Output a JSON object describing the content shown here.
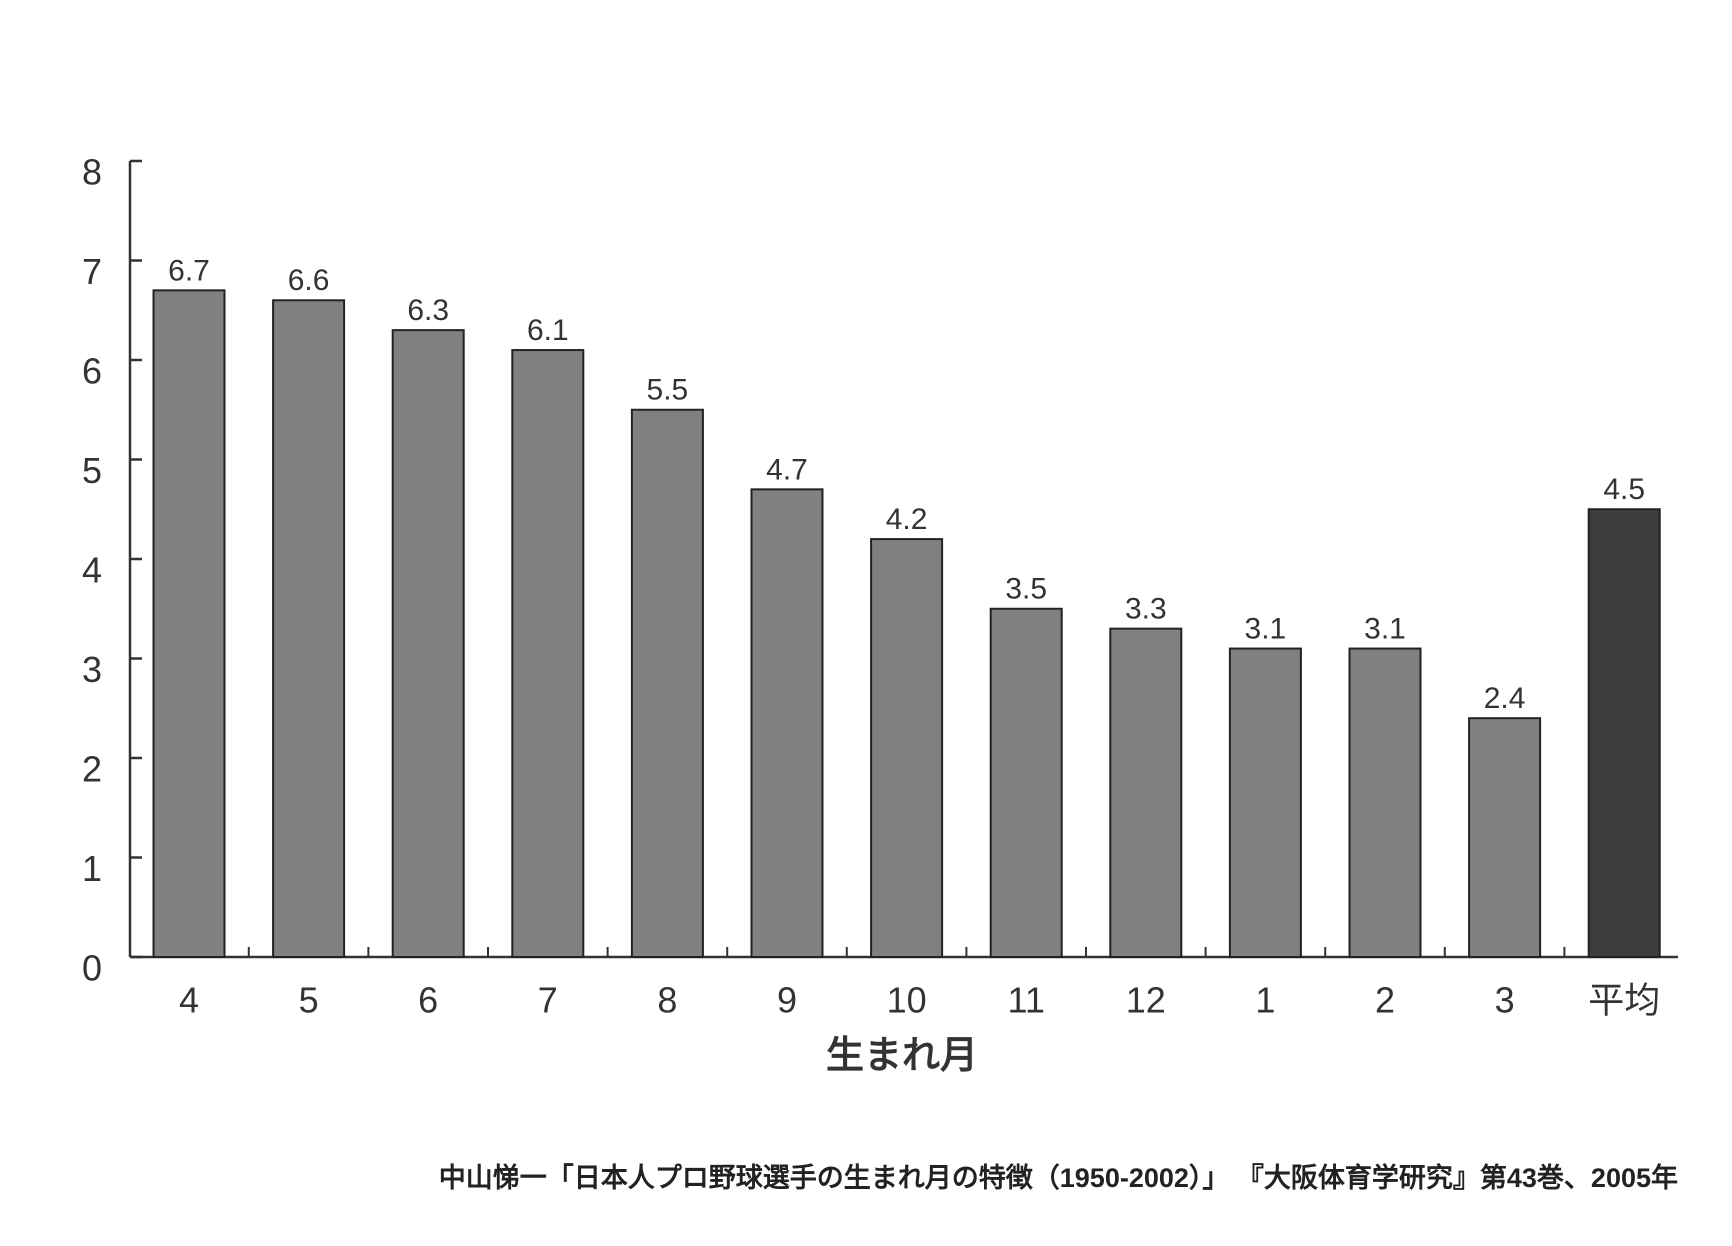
{
  "chart_data": {
    "type": "bar",
    "x_label": "生まれ月",
    "source": "中山悌一「日本人プロ野球選手の生まれ月の特徴（1950-2002）」 『大阪体育学研究』第43巻、2005年",
    "categories": [
      "4",
      "5",
      "6",
      "7",
      "8",
      "9",
      "10",
      "11",
      "12",
      "1",
      "2",
      "3",
      "平均"
    ],
    "values": [
      6.7,
      6.6,
      6.3,
      6.1,
      5.5,
      4.7,
      4.2,
      3.5,
      3.3,
      3.1,
      3.1,
      2.4,
      4.5
    ],
    "colors": [
      "#808080",
      "#808080",
      "#808080",
      "#808080",
      "#808080",
      "#808080",
      "#808080",
      "#808080",
      "#808080",
      "#808080",
      "#808080",
      "#808080",
      "#3d3d3d"
    ],
    "ylim": [
      0,
      8
    ],
    "yticks": [
      0,
      1,
      2,
      3,
      4,
      5,
      6,
      7,
      8
    ]
  }
}
